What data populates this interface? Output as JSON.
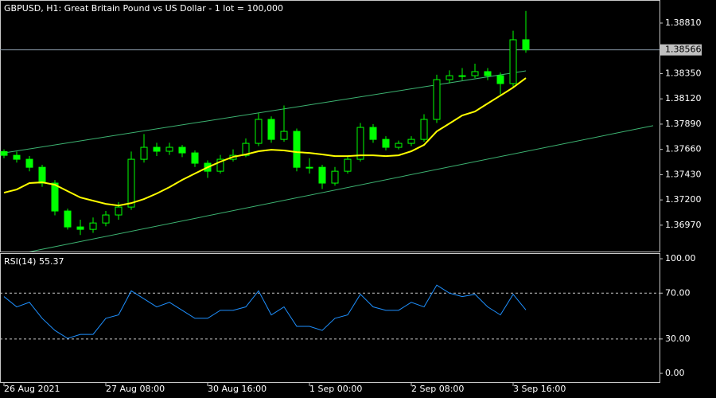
{
  "chart_data": [
    {
      "type": "candlestick",
      "title": "GBPUSD, H1:  Great Britain Pound vs US Dollar - 1 lot = 100,000",
      "color": "#00ff00",
      "open": [
        1.3764,
        1.37606,
        1.3757,
        1.37497,
        1.37353,
        1.37099,
        1.36954,
        1.36932,
        1.3699,
        1.37063,
        1.37135,
        1.3757,
        1.37679,
        1.37643,
        1.37679,
        1.37628,
        1.37534,
        1.37461,
        1.3757,
        1.37606,
        1.37715,
        1.37933,
        1.37751,
        1.37824,
        1.37497,
        1.37497,
        1.37353,
        1.37461,
        1.3757,
        1.3786,
        1.37751,
        1.37679,
        1.37715,
        1.37751,
        1.37933,
        1.38295,
        1.38331,
        1.38331,
        1.38368,
        1.38331,
        1.38259,
        1.38658
      ],
      "high": [
        1.3766,
        1.3764,
        1.376,
        1.3752,
        1.3738,
        1.3712,
        1.3702,
        1.3704,
        1.371,
        1.3718,
        1.3764,
        1.378,
        1.3772,
        1.3772,
        1.377,
        1.3765,
        1.3756,
        1.3761,
        1.3766,
        1.3776,
        1.3799,
        1.3796,
        1.3806,
        1.3785,
        1.3758,
        1.3752,
        1.375,
        1.376,
        1.379,
        1.3789,
        1.3778,
        1.3774,
        1.3778,
        1.3798,
        1.3834,
        1.3838,
        1.384,
        1.3844,
        1.384,
        1.3836,
        1.3874,
        1.3892
      ],
      "low": [
        1.3758,
        1.3754,
        1.3746,
        1.3732,
        1.3706,
        1.3693,
        1.3688,
        1.369,
        1.3696,
        1.3702,
        1.3711,
        1.3754,
        1.376,
        1.3761,
        1.3759,
        1.375,
        1.374,
        1.3744,
        1.3755,
        1.3759,
        1.3769,
        1.3772,
        1.3773,
        1.3746,
        1.3744,
        1.373,
        1.3733,
        1.3744,
        1.3755,
        1.3772,
        1.3765,
        1.3766,
        1.3769,
        1.3773,
        1.379,
        1.3826,
        1.3829,
        1.3831,
        1.3829,
        1.3816,
        1.3823,
        1.3854
      ],
      "close": [
        1.37606,
        1.3757,
        1.37497,
        1.37353,
        1.37099,
        1.36954,
        1.36932,
        1.3699,
        1.37063,
        1.37135,
        1.3757,
        1.37679,
        1.37643,
        1.37679,
        1.37628,
        1.37534,
        1.37461,
        1.3757,
        1.37606,
        1.37715,
        1.37933,
        1.37751,
        1.37824,
        1.37497,
        1.37497,
        1.37353,
        1.37461,
        1.3757,
        1.3786,
        1.37751,
        1.37679,
        1.37715,
        1.37751,
        1.37933,
        1.38295,
        1.38331,
        1.38331,
        1.38368,
        1.38331,
        1.38259,
        1.38658,
        1.38566
      ],
      "overlays": [
        {
          "type": "line",
          "color": "#ffff00",
          "values": [
            1.37266,
            1.37295,
            1.37353,
            1.3736,
            1.37338,
            1.3728,
            1.37222,
            1.37193,
            1.37164,
            1.37149,
            1.37171,
            1.37208,
            1.37258,
            1.37316,
            1.37382,
            1.3744,
            1.37497,
            1.37548,
            1.37592,
            1.37614,
            1.37643,
            1.37657,
            1.3765,
            1.37635,
            1.37628,
            1.37614,
            1.37599,
            1.37599,
            1.37606,
            1.37606,
            1.37599,
            1.37606,
            1.37643,
            1.37701,
            1.37824,
            1.37896,
            1.37969,
            1.38005,
            1.38078,
            1.3815,
            1.38223,
            1.38309
          ]
        }
      ],
      "trendlines": [
        {
          "color": "#3cb371",
          "x": [
            0,
            41
          ],
          "values": [
            1.37628,
            1.38375
          ]
        },
        {
          "color": "#3cb371",
          "x": [
            2,
            51
          ],
          "values": [
            1.36727,
            1.37876
          ]
        }
      ],
      "current_price": 1.38566,
      "xlim": [
        0,
        51.5
      ],
      "xticks": [
        {
          "value": 0,
          "label": "26 Aug 2021"
        },
        {
          "value": 8,
          "label": "27 Aug 08:00"
        },
        {
          "value": 16,
          "label": "30 Aug 16:00"
        },
        {
          "value": 24,
          "label": "1 Sep 00:00"
        },
        {
          "value": 32,
          "label": "2 Sep 08:00"
        },
        {
          "value": 40,
          "label": "3 Sep 16:00"
        }
      ],
      "ylim": [
        1.3673,
        1.3902
      ],
      "yticks": [
        {
          "value": 1.3697,
          "label": "1.36970"
        },
        {
          "value": 1.372,
          "label": "1.37200"
        },
        {
          "value": 1.3743,
          "label": "1.37430"
        },
        {
          "value": 1.3766,
          "label": "1.37660"
        },
        {
          "value": 1.3789,
          "label": "1.37890"
        },
        {
          "value": 1.3812,
          "label": "1.38120"
        },
        {
          "value": 1.3835,
          "label": "1.38350"
        },
        {
          "value": 1.3881,
          "label": "1.38810"
        }
      ]
    },
    {
      "type": "line",
      "title": "RSI(14)",
      "last_value": 55.37,
      "color": "#1e90ff",
      "values": [
        67,
        58,
        62,
        48,
        37.5,
        30.5,
        34,
        34,
        48,
        51,
        72,
        65,
        58,
        62,
        55,
        48,
        48,
        55,
        55,
        58,
        72,
        51,
        58,
        41,
        41,
        37.5,
        48,
        51,
        69,
        58,
        55,
        55,
        62,
        58,
        77,
        70,
        67,
        69,
        58,
        51,
        69,
        55.37
      ],
      "levels": [
        30,
        70
      ],
      "ylim": [
        -7.6,
        104.9
      ],
      "yticks": [
        {
          "value": 0,
          "label": "0.00"
        },
        {
          "value": 30,
          "label": "30.00"
        },
        {
          "value": 70,
          "label": "70.00"
        },
        {
          "value": 100,
          "label": "100.00"
        }
      ]
    }
  ]
}
